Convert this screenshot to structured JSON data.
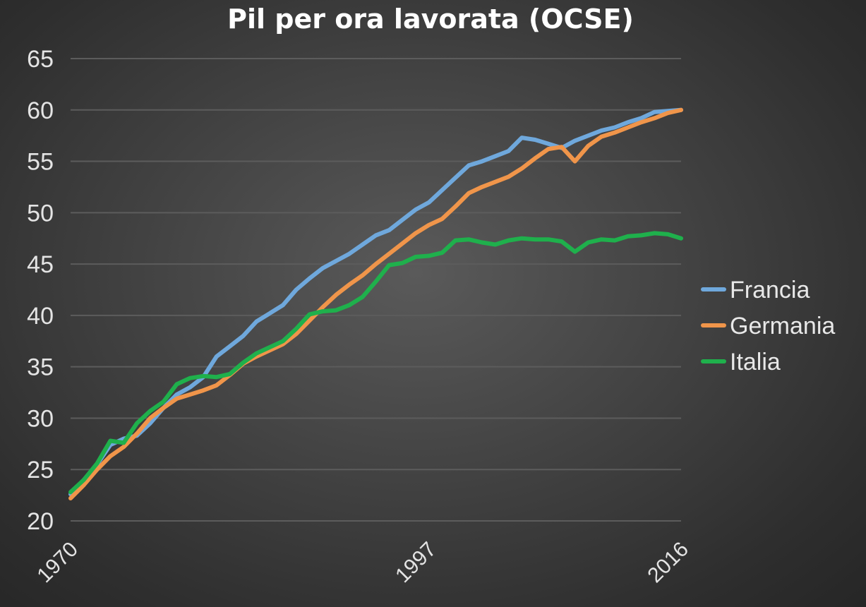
{
  "chart_data": {
    "type": "line",
    "title": "Pil per ora lavorata (OCSE)",
    "xlabel": "",
    "ylabel": "",
    "xlim": [
      1970,
      2016
    ],
    "ylim": [
      20,
      65
    ],
    "yticks": [
      20,
      25,
      30,
      35,
      40,
      45,
      50,
      55,
      60,
      65
    ],
    "xticks": [
      1970,
      1997,
      2016
    ],
    "grid": true,
    "legend_position": "right",
    "x": [
      1970,
      1971,
      1972,
      1973,
      1974,
      1975,
      1976,
      1977,
      1978,
      1979,
      1980,
      1981,
      1982,
      1983,
      1984,
      1985,
      1986,
      1987,
      1988,
      1989,
      1990,
      1991,
      1992,
      1993,
      1994,
      1995,
      1996,
      1997,
      1998,
      1999,
      2000,
      2001,
      2002,
      2003,
      2004,
      2005,
      2006,
      2007,
      2008,
      2009,
      2010,
      2011,
      2012,
      2013,
      2014,
      2015,
      2016
    ],
    "series": [
      {
        "name": "Francia",
        "color": "#6fa8dc",
        "values": [
          22.6,
          24.0,
          25.5,
          27.4,
          28.0,
          28.3,
          29.5,
          31.0,
          32.3,
          33.0,
          34.0,
          36.0,
          37.0,
          38.0,
          39.4,
          40.2,
          41.0,
          42.5,
          43.6,
          44.6,
          45.3,
          46.0,
          46.9,
          47.8,
          48.3,
          49.3,
          50.3,
          51.0,
          52.2,
          53.4,
          54.6,
          55.0,
          55.5,
          56.0,
          57.3,
          57.1,
          56.7,
          56.3,
          57.0,
          57.5,
          58.0,
          58.3,
          58.8,
          59.2,
          59.8,
          59.9,
          60.0
        ]
      },
      {
        "name": "Germania",
        "color": "#f0954a",
        "values": [
          22.2,
          23.5,
          25.0,
          26.3,
          27.2,
          28.5,
          30.0,
          31.0,
          31.9,
          32.3,
          32.7,
          33.2,
          34.2,
          35.3,
          36.0,
          36.6,
          37.2,
          38.2,
          39.5,
          40.8,
          42.0,
          43.0,
          43.9,
          45.0,
          46.0,
          47.0,
          48.0,
          48.8,
          49.4,
          50.6,
          51.9,
          52.5,
          53.0,
          53.5,
          54.3,
          55.3,
          56.2,
          56.4,
          55.0,
          56.5,
          57.4,
          57.8,
          58.3,
          58.8,
          59.2,
          59.7,
          60.0
        ]
      },
      {
        "name": "Italia",
        "color": "#1fb04c",
        "values": [
          22.8,
          24.0,
          25.6,
          27.8,
          27.6,
          29.5,
          30.7,
          31.6,
          33.3,
          33.9,
          34.1,
          34.0,
          34.3,
          35.4,
          36.3,
          36.9,
          37.5,
          38.7,
          40.1,
          40.4,
          40.5,
          41.0,
          41.8,
          43.3,
          44.9,
          45.1,
          45.7,
          45.8,
          46.1,
          47.3,
          47.4,
          47.1,
          46.9,
          47.3,
          47.5,
          47.4,
          47.4,
          47.2,
          46.2,
          47.1,
          47.4,
          47.3,
          47.7,
          47.8,
          48.0,
          47.9,
          47.5
        ]
      }
    ]
  }
}
